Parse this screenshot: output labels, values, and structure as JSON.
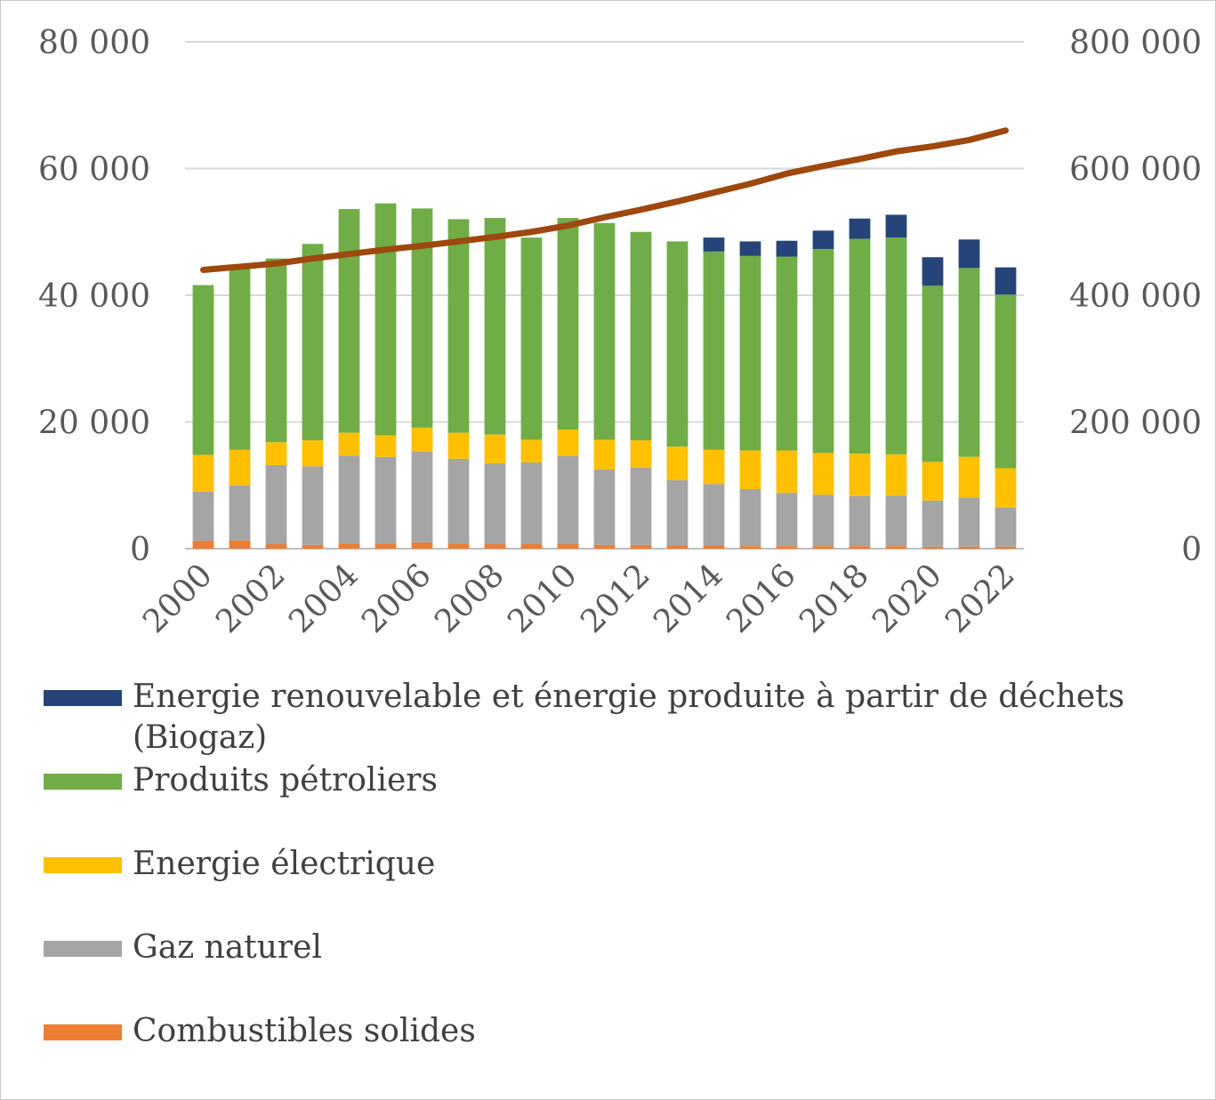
{
  "chart_data": {
    "type": "bar",
    "stacked": true,
    "categories": [
      "2000",
      "2001",
      "2002",
      "2003",
      "2004",
      "2005",
      "2006",
      "2007",
      "2008",
      "2009",
      "2010",
      "2011",
      "2012",
      "2013",
      "2014",
      "2015",
      "2016",
      "2017",
      "2018",
      "2019",
      "2020",
      "2021",
      "2022"
    ],
    "x_tick_labels": [
      "2000",
      "2002",
      "2004",
      "2006",
      "2008",
      "2010",
      "2012",
      "2014",
      "2016",
      "2018",
      "2020",
      "2022"
    ],
    "series": [
      {
        "name": "Combustibles solides",
        "color": "#ED7D31",
        "values": [
          1200,
          1300,
          700,
          600,
          800,
          800,
          1000,
          800,
          700,
          700,
          700,
          600,
          600,
          500,
          500,
          400,
          400,
          400,
          400,
          400,
          300,
          300,
          300
        ]
      },
      {
        "name": "Gaz naturel",
        "color": "#A5A5A5",
        "values": [
          7800,
          8700,
          12500,
          12400,
          13900,
          13700,
          14300,
          13400,
          12800,
          12900,
          13900,
          11900,
          12200,
          10300,
          9700,
          9000,
          8400,
          8100,
          7900,
          8000,
          7300,
          7800,
          6200
        ]
      },
      {
        "name": "Energie électrique",
        "color": "#FFC000",
        "values": [
          5800,
          5600,
          3600,
          4100,
          3600,
          3400,
          3800,
          4100,
          4500,
          3600,
          4200,
          4700,
          4300,
          5300,
          5400,
          6100,
          6700,
          6600,
          6700,
          6500,
          6100,
          6400,
          6200
        ]
      },
      {
        "name": "Produits pétroliers",
        "color": "#70AD47",
        "values": [
          26800,
          29200,
          29000,
          31000,
          35300,
          36600,
          34600,
          33700,
          34200,
          31900,
          33400,
          34200,
          32900,
          32400,
          31300,
          30700,
          30600,
          32200,
          33900,
          34200,
          27800,
          29800,
          27400
        ]
      },
      {
        "name": "Energie renouvelable et énergie produite à partir de déchets (Biogaz)",
        "color": "#264478",
        "values": [
          0,
          0,
          0,
          0,
          0,
          0,
          0,
          0,
          0,
          0,
          0,
          0,
          0,
          0,
          2200,
          2300,
          2500,
          2900,
          3200,
          3600,
          4500,
          4500,
          4300
        ]
      }
    ],
    "line_series": {
      "axis": "right",
      "color": "#9E480E",
      "values": [
        440000,
        445000,
        450000,
        458000,
        465000,
        472000,
        478000,
        485000,
        492000,
        500000,
        510000,
        523000,
        535000,
        548000,
        562000,
        576000,
        592000,
        604000,
        615000,
        627000,
        635000,
        645000,
        660000
      ]
    },
    "ylim": [
      0,
      80000
    ],
    "y_ticks": [
      "0",
      "20 000",
      "40 000",
      "60 000",
      "80 000"
    ],
    "y2lim": [
      0,
      800000
    ],
    "y2_ticks": [
      "0",
      "200 000",
      "400 000",
      "600 000",
      "800 000"
    ],
    "grid": true,
    "legend_position": "bottom",
    "legend_order": [
      4,
      3,
      2,
      1,
      0
    ]
  }
}
